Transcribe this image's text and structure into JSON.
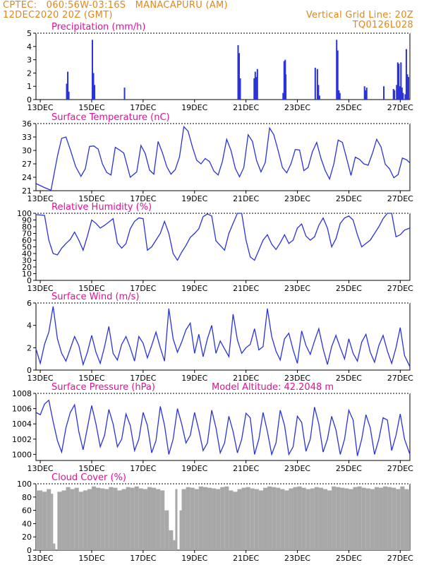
{
  "header": {
    "source": "CPTEC:",
    "coords": "060:56W-03:16S",
    "location": "MANACAPURU (AM)",
    "datetime": "12DEC2020 20Z (GMT)",
    "grid_note": "Vertical Grid Line: 20Z",
    "code": "TQ0126L028",
    "color": "#e0871c"
  },
  "colors": {
    "title": "#e0109a",
    "line": "#2a33d8",
    "bar": "#2a33d8",
    "cloud": "#a8a8a8",
    "frame": "#000000"
  },
  "chart_data": [
    {
      "type": "bar",
      "title": "Precipitation (mm/h)",
      "x_labels": [
        "13DEC",
        "15DEC",
        "17DEC",
        "19DEC",
        "21DEC",
        "23DEC",
        "25DEC",
        "27DEC"
      ],
      "ylim": [
        0,
        5
      ],
      "yticks": [
        0,
        1,
        2,
        3,
        4,
        5
      ],
      "x_unit": "hours since 12DEC2020 20Z",
      "x_range": [
        0,
        349
      ],
      "x": [
        28,
        29,
        30,
        52,
        53,
        54,
        82,
        188,
        189,
        190,
        203,
        204,
        205,
        206,
        230,
        231,
        232,
        232.5,
        260,
        262,
        263,
        264,
        280,
        281,
        282,
        283,
        306,
        307,
        308,
        348.5,
        324,
        333,
        334,
        336,
        337,
        338,
        339,
        340,
        341,
        342,
        343,
        344,
        345,
        346,
        347
      ],
      "values": [
        1.2,
        2.1,
        0.6,
        4.5,
        2.0,
        1.1,
        0.9,
        4.1,
        3.5,
        1.6,
        1.6,
        2.1,
        1.7,
        2.3,
        0.5,
        2.9,
        3.0,
        1.9,
        2.4,
        2.3,
        1.1,
        0.3,
        4.5,
        3.7,
        0.7,
        0.5,
        1.0,
        0.7,
        0.9,
        0.0,
        1.0,
        0.8,
        0.7,
        1.1,
        2.8,
        2.7,
        1.0,
        2.8,
        0.9,
        0.5,
        0.0,
        0.4,
        3.8,
        1.9,
        1.7
      ]
    },
    {
      "type": "line",
      "title": "Surface Temperature (nC)",
      "x_labels": [
        "13DEC",
        "15DEC",
        "17DEC",
        "19DEC",
        "21DEC",
        "23DEC",
        "25DEC",
        "27DEC"
      ],
      "ylim": [
        21,
        36
      ],
      "yticks": [
        21,
        24,
        27,
        30,
        33,
        36
      ],
      "x_unit": "hours since 12DEC2020 20Z",
      "x_range": [
        0,
        349
      ],
      "x": [
        0,
        8,
        14,
        20,
        24,
        28,
        32,
        37,
        42,
        46,
        50,
        54,
        58,
        62,
        66,
        70,
        74,
        78,
        82,
        88,
        94,
        98,
        102,
        106,
        110,
        114,
        118,
        122,
        126,
        130,
        134,
        138,
        142,
        146,
        150,
        154,
        158,
        162,
        166,
        170,
        174,
        178,
        182,
        186,
        190,
        194,
        198,
        202,
        206,
        210,
        214,
        218,
        222,
        226,
        230,
        234,
        238,
        242,
        246,
        250,
        254,
        258,
        262,
        266,
        270,
        274,
        278,
        282,
        286,
        290,
        294,
        298,
        302,
        306,
        310,
        314,
        318,
        322,
        326,
        330,
        334,
        338,
        342,
        346,
        349
      ],
      "y": [
        22.6,
        21.7,
        21.1,
        28.7,
        32.7,
        33.0,
        30.2,
        26.4,
        24.2,
        25.9,
        30.9,
        31.0,
        30.3,
        27.0,
        25.1,
        24.5,
        30.7,
        30.1,
        29.4,
        24.0,
        25.2,
        31.1,
        29.3,
        25.6,
        24.7,
        32.0,
        29.5,
        26.4,
        24.7,
        25.7,
        28.6,
        35.3,
        34.3,
        30.8,
        27.8,
        27.0,
        28.2,
        27.5,
        25.4,
        24.5,
        27.5,
        32.5,
        30.0,
        26.0,
        24.1,
        26.2,
        33.5,
        32.0,
        27.7,
        25.2,
        27.3,
        35.0,
        33.5,
        30.0,
        26.2,
        25.0,
        27.0,
        30.2,
        30.1,
        25.5,
        26.2,
        29.7,
        31.8,
        28.2,
        25.5,
        23.6,
        27.0,
        32.3,
        31.8,
        28.2,
        24.4,
        28.5,
        28.0,
        27.0,
        26.7,
        29.3,
        32.5,
        30.8,
        26.9,
        25.9,
        23.9,
        24.6,
        28.3,
        27.9,
        27.2
      ]
    },
    {
      "type": "line",
      "title": "Relative Humidity (%)",
      "x_labels": [
        "13DEC",
        "15DEC",
        "17DEC",
        "19DEC",
        "21DEC",
        "23DEC",
        "25DEC",
        "27DEC"
      ],
      "ylim": [
        0,
        100
      ],
      "yticks": [
        0,
        10,
        20,
        30,
        40,
        50,
        60,
        70,
        80,
        90,
        100
      ],
      "x_unit": "hours since 12DEC2020 20Z",
      "x_range": [
        0,
        349
      ],
      "x": [
        0,
        8,
        12,
        16,
        20,
        24,
        28,
        32,
        36,
        40,
        44,
        48,
        52,
        56,
        60,
        64,
        68,
        72,
        76,
        80,
        84,
        88,
        92,
        96,
        100,
        104,
        108,
        112,
        116,
        120,
        124,
        128,
        132,
        136,
        140,
        144,
        148,
        152,
        156,
        160,
        164,
        168,
        172,
        176,
        180,
        184,
        188,
        192,
        196,
        200,
        204,
        208,
        212,
        216,
        220,
        224,
        228,
        232,
        236,
        240,
        244,
        248,
        252,
        256,
        260,
        264,
        268,
        272,
        276,
        280,
        284,
        288,
        292,
        296,
        300,
        304,
        308,
        312,
        316,
        320,
        324,
        328,
        332,
        336,
        340,
        344,
        349
      ],
      "y": [
        98,
        97,
        60,
        40,
        38,
        48,
        55,
        61,
        72,
        60,
        45,
        66,
        90,
        85,
        78,
        82,
        87,
        92,
        56,
        48,
        55,
        77,
        88,
        93,
        92,
        45,
        50,
        60,
        70,
        88,
        70,
        40,
        30,
        42,
        52,
        64,
        70,
        77,
        95,
        99,
        96,
        59,
        52,
        45,
        70,
        85,
        100,
        100,
        60,
        35,
        30,
        45,
        60,
        68,
        54,
        46,
        56,
        68,
        55,
        60,
        78,
        84,
        66,
        60,
        65,
        82,
        93,
        78,
        50,
        62,
        85,
        93,
        96,
        90,
        68,
        50,
        55,
        60,
        70,
        80,
        92,
        100,
        100,
        65,
        68,
        75,
        78
      ]
    },
    {
      "type": "line",
      "title": "Surface Wind (m/s)",
      "x_labels": [
        "13DEC",
        "15DEC",
        "17DEC",
        "19DEC",
        "21DEC",
        "23DEC",
        "25DEC",
        "27DEC"
      ],
      "ylim": [
        0,
        6
      ],
      "yticks": [
        0,
        2,
        4,
        6
      ],
      "x_unit": "hours since 12DEC2020 20Z",
      "x_range": [
        0,
        349
      ],
      "x": [
        0,
        4,
        8,
        12,
        16,
        20,
        24,
        28,
        32,
        36,
        40,
        44,
        48,
        52,
        56,
        60,
        64,
        68,
        72,
        76,
        80,
        84,
        88,
        92,
        96,
        100,
        104,
        108,
        112,
        116,
        120,
        124,
        128,
        132,
        136,
        140,
        144,
        148,
        152,
        156,
        160,
        164,
        168,
        172,
        176,
        180,
        184,
        188,
        192,
        196,
        200,
        204,
        208,
        212,
        216,
        220,
        224,
        228,
        232,
        236,
        240,
        244,
        248,
        252,
        256,
        260,
        264,
        268,
        272,
        276,
        280,
        284,
        288,
        292,
        296,
        300,
        304,
        308,
        312,
        316,
        320,
        324,
        328,
        332,
        336,
        340,
        344,
        349
      ],
      "y": [
        1.9,
        0.6,
        2.3,
        3.4,
        5.7,
        2.8,
        1.5,
        0.8,
        1.9,
        3.0,
        2.2,
        0.5,
        1.6,
        3.1,
        1.6,
        0.6,
        2.1,
        3.9,
        1.5,
        0.9,
        2.3,
        3.0,
        2.0,
        0.8,
        3.0,
        2.4,
        1.1,
        2.2,
        3.4,
        2.0,
        0.8,
        5.5,
        2.8,
        1.6,
        2.5,
        3.6,
        4.2,
        1.5,
        3.2,
        1.2,
        2.8,
        4.0,
        1.5,
        2.6,
        1.9,
        1.2,
        5.0,
        2.7,
        1.5,
        2.0,
        2.3,
        3.7,
        1.8,
        2.1,
        5.5,
        3.0,
        1.7,
        0.9,
        2.8,
        3.3,
        1.8,
        0.6,
        3.5,
        2.2,
        1.4,
        2.6,
        3.7,
        1.9,
        0.5,
        2.1,
        3.1,
        2.0,
        1.0,
        2.8,
        1.5,
        0.8,
        2.5,
        3.2,
        1.6,
        0.7,
        2.2,
        3.1,
        1.7,
        0.6,
        2.0,
        3.8,
        1.3,
        0.3
      ]
    },
    {
      "type": "line",
      "title": "Surface Pressure (hPa)",
      "annotation": "Model Altitude: 42.2048 m",
      "x_labels": [
        "13DEC",
        "15DEC",
        "17DEC",
        "19DEC",
        "21DEC",
        "23DEC",
        "25DEC",
        "27DEC"
      ],
      "ylim": [
        999.2,
        1008
      ],
      "yticks": [
        1000,
        1002,
        1004,
        1006,
        1008
      ],
      "x_unit": "hours since 12DEC2020 20Z",
      "x_range": [
        0,
        349
      ],
      "x": [
        0,
        4,
        8,
        12,
        16,
        20,
        24,
        28,
        32,
        36,
        40,
        44,
        48,
        52,
        56,
        60,
        64,
        68,
        72,
        76,
        80,
        84,
        88,
        92,
        96,
        100,
        104,
        108,
        112,
        116,
        120,
        124,
        128,
        132,
        136,
        140,
        144,
        148,
        152,
        156,
        160,
        164,
        168,
        172,
        176,
        180,
        184,
        188,
        192,
        196,
        200,
        204,
        208,
        212,
        216,
        220,
        224,
        228,
        232,
        236,
        240,
        244,
        248,
        252,
        256,
        260,
        264,
        268,
        272,
        276,
        280,
        284,
        288,
        292,
        296,
        300,
        304,
        308,
        312,
        316,
        320,
        324,
        328,
        332,
        336,
        340,
        344,
        349
      ],
      "y": [
        1005.5,
        1005.2,
        1006.6,
        1007.1,
        1004.3,
        1001.8,
        1000.3,
        1003.5,
        1005.5,
        1006.5,
        1003.0,
        1000.6,
        1003.5,
        1006.4,
        1004.0,
        1001.0,
        1002.5,
        1005.9,
        1004.0,
        1001.0,
        1002.0,
        1005.3,
        1003.8,
        1000.5,
        1002.0,
        1005.5,
        1003.8,
        1000.2,
        1001.8,
        1006.3,
        1003.8,
        1000.0,
        1002.0,
        1006.0,
        1004.0,
        1001.5,
        1002.5,
        1005.5,
        1003.2,
        1000.5,
        1001.5,
        1005.8,
        1003.5,
        1000.2,
        1001.5,
        1005.0,
        1003.0,
        1000.2,
        1002.0,
        1005.4,
        1004.8,
        1000.0,
        1002.0,
        1005.5,
        1003.0,
        1000.0,
        1001.5,
        1005.8,
        1003.8,
        1000.0,
        1001.0,
        1005.0,
        1004.2,
        1000.4,
        1002.0,
        1006.2,
        1004.0,
        1000.3,
        1002.0,
        1005.0,
        1003.2,
        1000.0,
        1002.0,
        1005.8,
        1004.5,
        999.8,
        1002.0,
        1005.2,
        1003.5,
        1000.0,
        1002.0,
        1004.8,
        1004.5,
        1000.5,
        1002.5,
        1005.3,
        1002.0,
        1000.0
      ]
    },
    {
      "type": "bar",
      "title": "Cloud Cover (%)",
      "x_labels": [
        "13DEC",
        "15DEC",
        "17DEC",
        "19DEC",
        "21DEC",
        "23DEC",
        "25DEC",
        "27DEC"
      ],
      "ylim": [
        0,
        100
      ],
      "yticks": [
        0,
        20,
        40,
        60,
        80,
        100
      ],
      "x_unit": "hours since 12DEC2020 20Z",
      "x_range": [
        0,
        349
      ],
      "x": [
        0,
        6,
        10,
        14,
        16,
        18,
        20,
        24,
        28,
        32,
        36,
        40,
        44,
        48,
        52,
        56,
        60,
        64,
        68,
        72,
        76,
        80,
        84,
        88,
        92,
        96,
        100,
        104,
        108,
        112,
        116,
        120,
        124,
        128,
        130,
        132,
        134,
        136,
        140,
        144,
        148,
        152,
        156,
        160,
        164,
        168,
        172,
        176,
        180,
        184,
        188,
        192,
        196,
        200,
        204,
        208,
        212,
        216,
        220,
        224,
        228,
        232,
        236,
        240,
        244,
        248,
        252,
        256,
        260,
        264,
        268,
        272,
        276,
        280,
        284,
        288,
        292,
        296,
        300,
        304,
        308,
        312,
        316,
        320,
        324,
        328,
        332,
        336,
        340,
        344,
        348
      ],
      "values": [
        90,
        88,
        92,
        85,
        10,
        0,
        88,
        90,
        95,
        92,
        94,
        88,
        90,
        92,
        96,
        94,
        93,
        92,
        95,
        94,
        90,
        92,
        95,
        94,
        96,
        93,
        92,
        95,
        94,
        92,
        90,
        60,
        30,
        15,
        92,
        0,
        60,
        92,
        95,
        94,
        92,
        96,
        95,
        94,
        93,
        92,
        95,
        96,
        90,
        88,
        92,
        94,
        95,
        93,
        92,
        90,
        94,
        96,
        95,
        94,
        92,
        90,
        93,
        95,
        96,
        94,
        92,
        93,
        95,
        94,
        92,
        90,
        96,
        95,
        94,
        93,
        92,
        95,
        96,
        94,
        93,
        92,
        95,
        94,
        96,
        95,
        94,
        92,
        96,
        92,
        90
      ]
    }
  ]
}
